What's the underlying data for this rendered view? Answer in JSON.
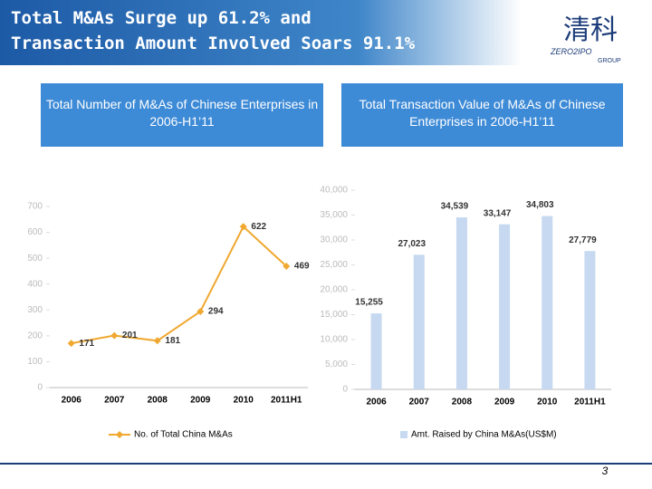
{
  "slide": {
    "title": [
      "Total M&As Surge up 61.2% and",
      "Transaction Amount Involved Soars 91.1%"
    ],
    "logo": [
      "清科",
      "ZERO2IPO",
      "GROUP"
    ],
    "page_number": "3"
  },
  "chart_data": [
    {
      "type": "line",
      "title": "Total Number of M&As  of Chinese Enterprises in 2006-H1’11",
      "categories": [
        "2006",
        "2007",
        "2008",
        "2009",
        "2010",
        "2011H1"
      ],
      "series": [
        {
          "name": "No. of Total China M&As",
          "color": "#f0a830",
          "values": [
            171,
            201,
            181,
            294,
            622,
            469
          ]
        }
      ],
      "ylim": [
        0,
        700
      ],
      "yticks": [
        0,
        100,
        200,
        300,
        400,
        500,
        600,
        700
      ],
      "legend": "bottom"
    },
    {
      "type": "bar",
      "title": "Total Transaction Value of M&As  of Chinese Enterprises in 2006-H1’11",
      "categories": [
        "2006",
        "2007",
        "2008",
        "2009",
        "2010",
        "2011H1"
      ],
      "series": [
        {
          "name": "Amt. Raised by China M&As(US$M)",
          "color": "#c6d9f0",
          "values": [
            15255,
            27023,
            34539,
            33147,
            34803,
            27779
          ],
          "value_labels": [
            "15,255",
            "27,023",
            "34,539",
            "33,147",
            "34,803",
            "27,779"
          ]
        }
      ],
      "ylim": [
        0,
        40000
      ],
      "yticks": [
        0,
        {
          "value": 5000,
          "label": "5,000"
        },
        {
          "value": 10000,
          "label": "10,000"
        },
        {
          "value": 15000,
          "label": "15,000"
        },
        {
          "value": 20000,
          "label": "20,000"
        },
        {
          "value": 25000,
          "label": "25,000"
        },
        {
          "value": 30000,
          "label": "30,000"
        },
        {
          "value": 35000,
          "label": "35,000"
        },
        {
          "value": 40000,
          "label": "40,000"
        }
      ],
      "legend": "bottom"
    }
  ]
}
